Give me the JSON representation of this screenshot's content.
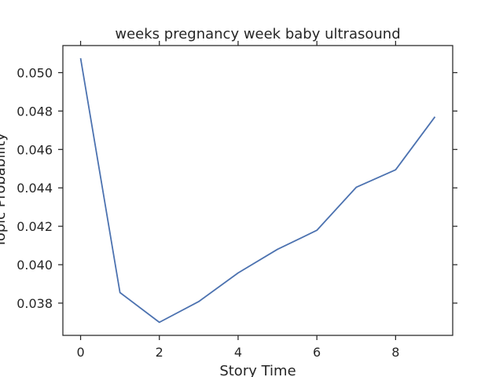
{
  "chart_data": {
    "type": "line",
    "title": "weeks pregnancy week baby ultrasound",
    "xlabel": "Story Time",
    "ylabel": "Topic Probability",
    "x": [
      0,
      1,
      2,
      3,
      4,
      5,
      6,
      7,
      8,
      9
    ],
    "series": [
      {
        "values": [
          0.05075,
          0.03855,
          0.037,
          0.03808,
          0.03957,
          0.0408,
          0.04179,
          0.04403,
          0.04494,
          0.0477
        ],
        "color": "#4c72b0"
      }
    ],
    "xlim": [
      -0.45,
      9.45
    ],
    "ylim": [
      0.03632,
      0.05141
    ],
    "xticks": [
      0,
      2,
      4,
      6,
      8
    ],
    "xtick_labels": [
      "0",
      "2",
      "4",
      "6",
      "8"
    ],
    "yticks": [
      0.038,
      0.04,
      0.042,
      0.044,
      0.046,
      0.048,
      0.05
    ],
    "ytick_labels": [
      "0.038",
      "0.040",
      "0.042",
      "0.044",
      "0.046",
      "0.048",
      "0.050"
    ],
    "grid": false,
    "legend": "none"
  }
}
